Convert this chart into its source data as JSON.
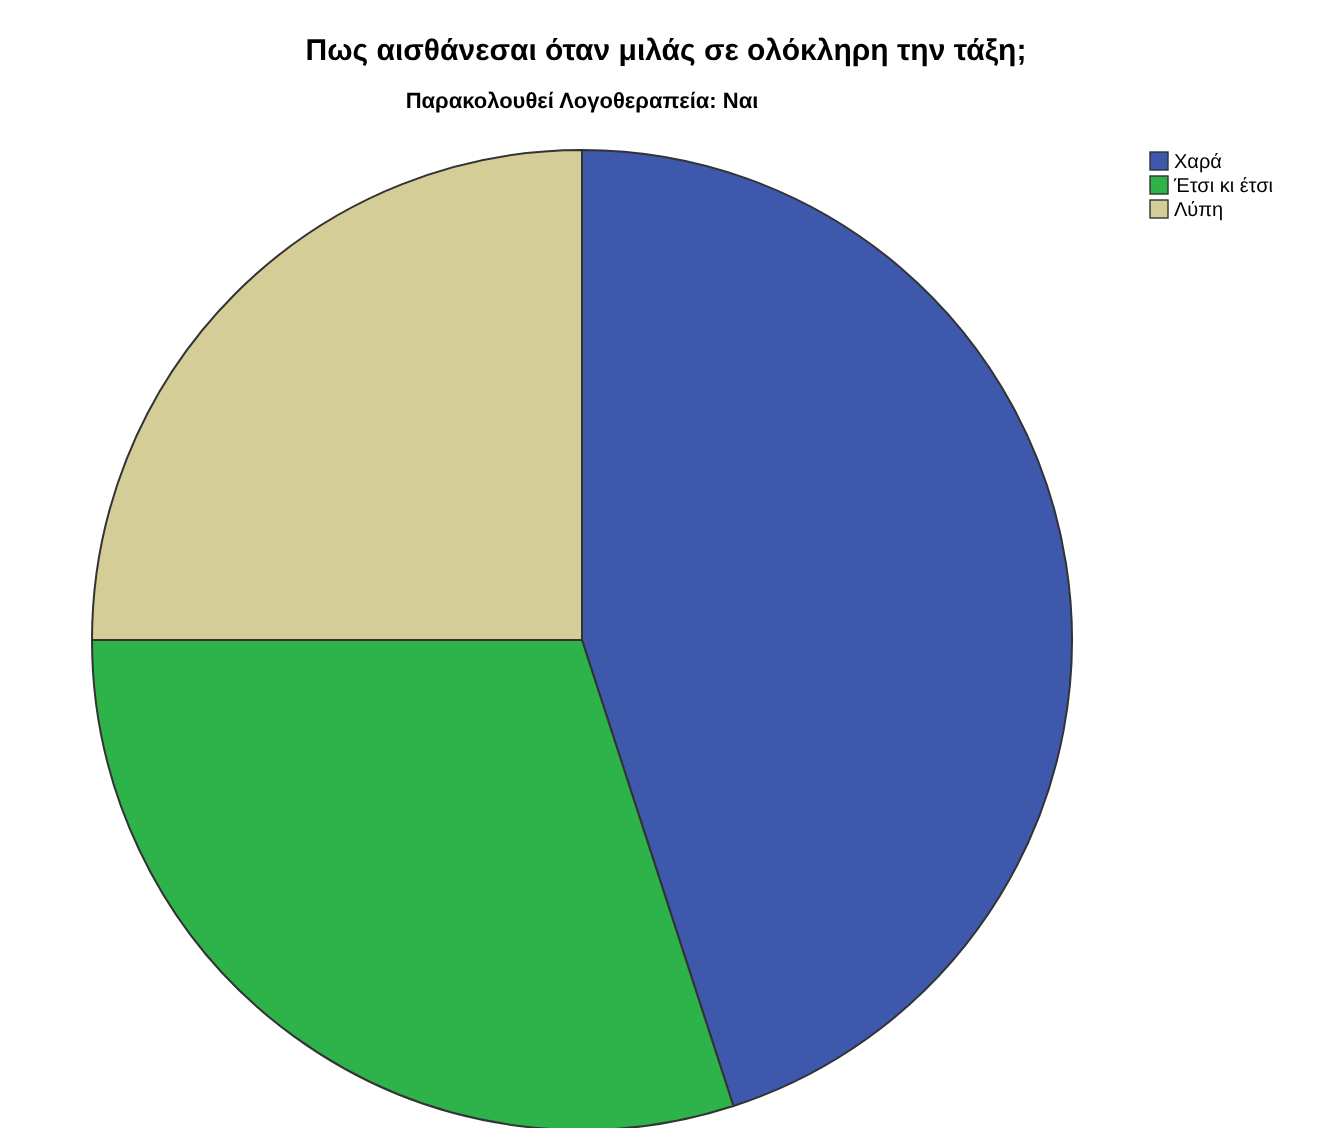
{
  "chart_data": {
    "type": "pie",
    "title": "Πως αισθάνεσαι όταν μιλάς σε ολόκληρη την τάξη;",
    "subtitle": "Παρακολουθεί Λογοθεραπεία: Ναι",
    "categories": [
      "Χαρά",
      "Έτσι κι έτσι",
      "Λύπη"
    ],
    "values": [
      45,
      30,
      25
    ],
    "colors": [
      "#3e58ac",
      "#2db34a",
      "#d4cd98"
    ],
    "legend": "top right"
  }
}
